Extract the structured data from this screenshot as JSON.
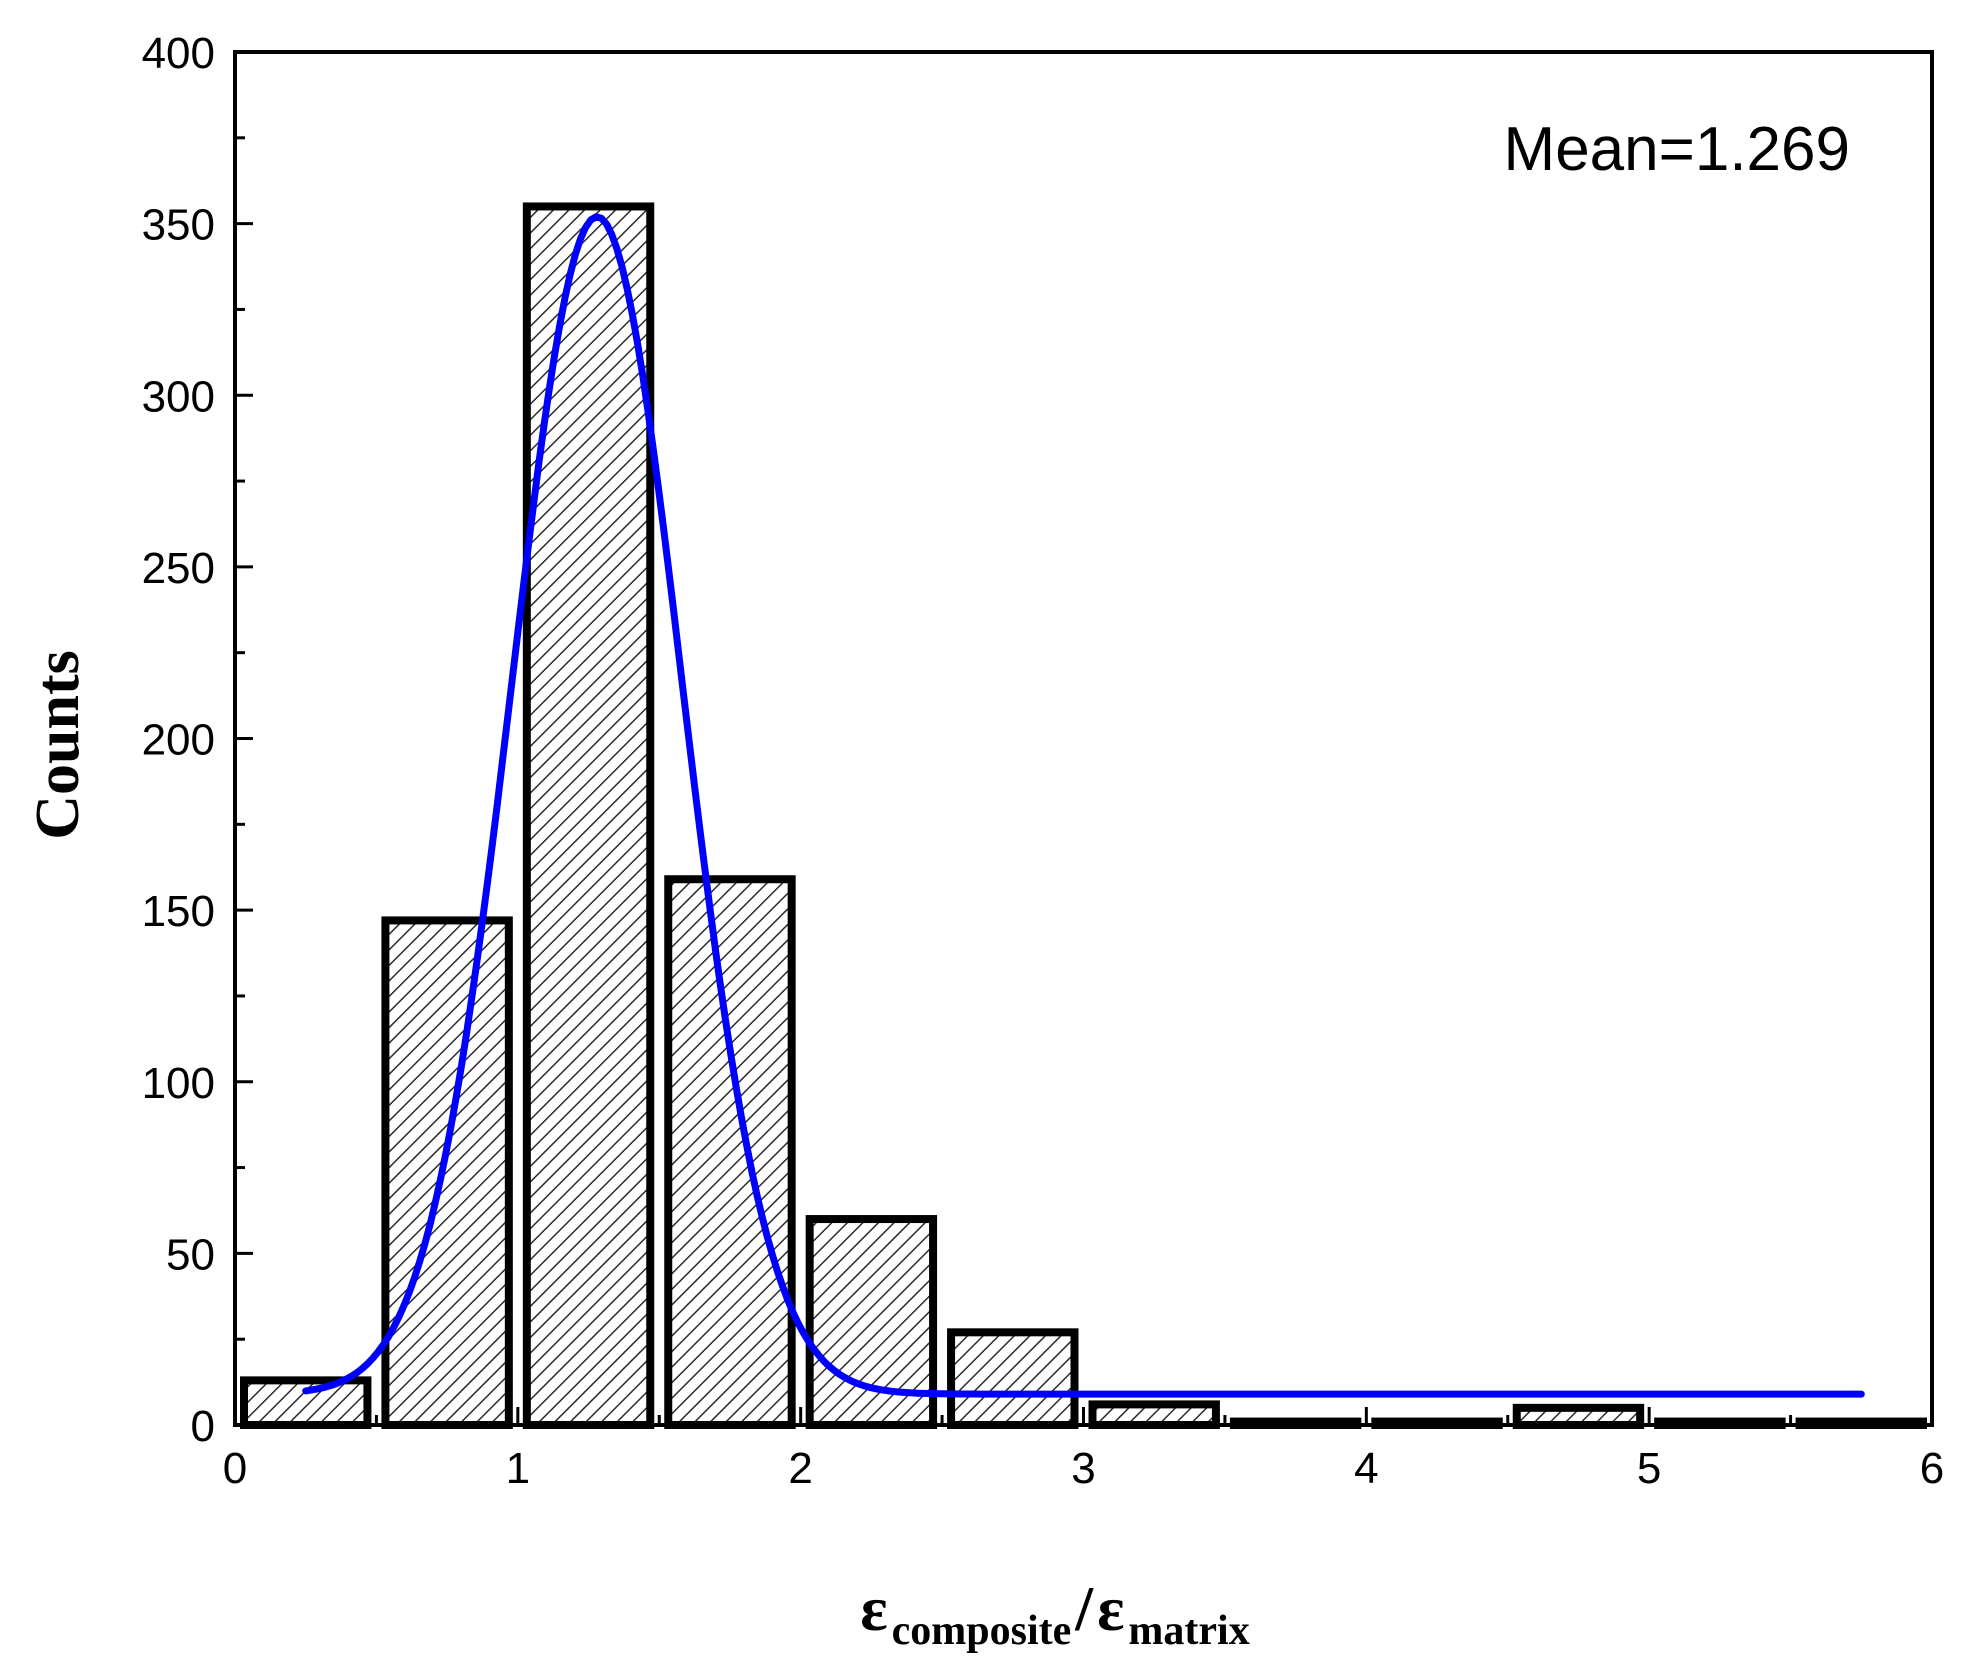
{
  "chart_data": {
    "type": "bar",
    "bin_edges": [
      0,
      0.5,
      1,
      1.5,
      2,
      2.5,
      3,
      3.5,
      4,
      4.5,
      5,
      5.5,
      6
    ],
    "counts": [
      13,
      147,
      355,
      159,
      60,
      27,
      6,
      1,
      1,
      5,
      1,
      1
    ],
    "fit_curve": {
      "type": "gaussian",
      "color": "#0000ff",
      "x_range": [
        0.25,
        5.75
      ],
      "peak_x": 1.28,
      "peak_y": 352,
      "baseline": 9,
      "sigma": 0.3
    },
    "xlim": [
      0,
      6
    ],
    "ylim": [
      0,
      400
    ],
    "x_ticks": [
      "0",
      "1",
      "2",
      "3",
      "4",
      "5",
      "6"
    ],
    "y_ticks": [
      "0",
      "50",
      "100",
      "150",
      "200",
      "250",
      "300",
      "350",
      "400"
    ],
    "ylabel": "Counts",
    "xlabel": {
      "symbol": "ε",
      "sub1": "composite",
      "separator": "/",
      "sub2": "matrix"
    },
    "annotation": "Mean=1.269",
    "grid": false,
    "bar_fill": "hatched",
    "bar_edge_color": "#000000"
  }
}
